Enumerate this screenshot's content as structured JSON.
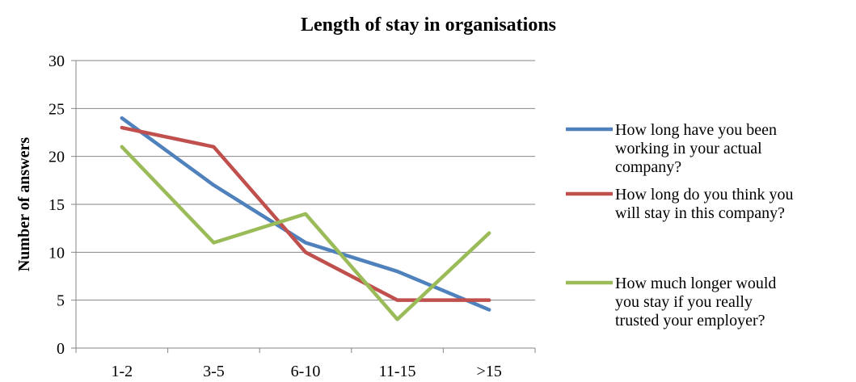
{
  "chart_data": {
    "type": "line",
    "title": "Length of stay in organisations",
    "xlabel": "",
    "ylabel": "Number of answers",
    "categories": [
      "1-2",
      "3-5",
      "6-10",
      "11-15",
      ">15"
    ],
    "ylim": [
      0,
      30
    ],
    "yticks": [
      0,
      5,
      10,
      15,
      20,
      25,
      30
    ],
    "grid": "horizontal",
    "legend_position": "right",
    "series": [
      {
        "name_lines": [
          "How long have you been",
          "working in your actual",
          "company?"
        ],
        "color": "#4F81BD",
        "values": [
          24,
          17,
          11,
          8,
          4
        ]
      },
      {
        "name_lines": [
          "How long do you think you",
          "will stay in this company?"
        ],
        "color": "#C0504D",
        "values": [
          23,
          21,
          10,
          5,
          5
        ]
      },
      {
        "name_lines": [
          "How much longer would",
          "you stay if you really",
          "trusted your employer?"
        ],
        "color": "#9BBB59",
        "values": [
          21,
          11,
          14,
          3,
          12
        ]
      }
    ]
  }
}
